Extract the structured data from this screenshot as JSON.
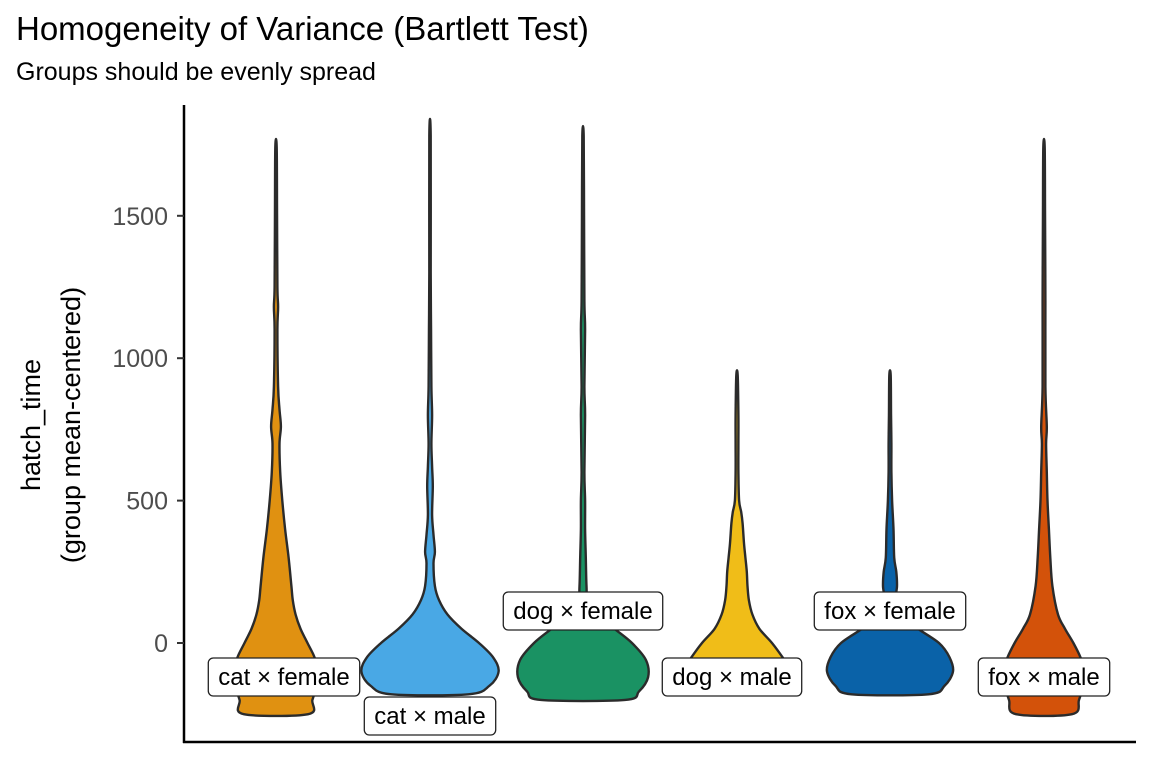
{
  "title": "Homogeneity of Variance (Bartlett Test)",
  "subtitle": "Groups should be evenly spread",
  "chart_data": {
    "type": "violin",
    "title": "Homogeneity of Variance (Bartlett Test)",
    "subtitle": "Groups should be evenly spread",
    "ylabel": [
      "hatch_time",
      "(group mean-centered)"
    ],
    "xlabel": "",
    "ylim": [
      -350,
      1850
    ],
    "y_ticks": [
      0,
      500,
      1000,
      1500
    ],
    "grid": false,
    "legend": "none",
    "groups": [
      {
        "label": "cat × female",
        "color": "#E09111",
        "min": -250,
        "max": 1740,
        "profile": [
          [
            -250,
            0.46
          ],
          [
            -200,
            0.52
          ],
          [
            -150,
            0.58
          ],
          [
            -100,
            0.6
          ],
          [
            -50,
            0.55
          ],
          [
            0,
            0.45
          ],
          [
            50,
            0.35
          ],
          [
            100,
            0.28
          ],
          [
            150,
            0.24
          ],
          [
            200,
            0.22
          ],
          [
            300,
            0.18
          ],
          [
            400,
            0.13
          ],
          [
            500,
            0.09
          ],
          [
            600,
            0.06
          ],
          [
            700,
            0.05
          ],
          [
            760,
            0.07
          ],
          [
            820,
            0.05
          ],
          [
            900,
            0.03
          ],
          [
            1100,
            0.02
          ],
          [
            1180,
            0.03
          ],
          [
            1250,
            0.02
          ],
          [
            1500,
            0.015
          ],
          [
            1740,
            0.01
          ]
        ]
      },
      {
        "label": "cat × male",
        "color": "#49A8E5",
        "min": -180,
        "max": 1780,
        "profile": [
          [
            -180,
            0.55
          ],
          [
            -150,
            0.85
          ],
          [
            -100,
            0.98
          ],
          [
            -50,
            0.9
          ],
          [
            0,
            0.7
          ],
          [
            50,
            0.45
          ],
          [
            100,
            0.25
          ],
          [
            150,
            0.13
          ],
          [
            200,
            0.07
          ],
          [
            280,
            0.05
          ],
          [
            320,
            0.07
          ],
          [
            380,
            0.05
          ],
          [
            450,
            0.03
          ],
          [
            550,
            0.04
          ],
          [
            620,
            0.03
          ],
          [
            700,
            0.02
          ],
          [
            800,
            0.03
          ],
          [
            900,
            0.02
          ],
          [
            1100,
            0.015
          ],
          [
            1300,
            0.01
          ],
          [
            1780,
            0.01
          ]
        ]
      },
      {
        "label": "dog × female",
        "color": "#1A9263",
        "min": -200,
        "max": 1780,
        "profile": [
          [
            -200,
            0.6
          ],
          [
            -170,
            0.8
          ],
          [
            -120,
            0.93
          ],
          [
            -60,
            0.9
          ],
          [
            0,
            0.7
          ],
          [
            50,
            0.45
          ],
          [
            100,
            0.2
          ],
          [
            150,
            0.07
          ],
          [
            200,
            0.05
          ],
          [
            300,
            0.04
          ],
          [
            400,
            0.03
          ],
          [
            500,
            0.03
          ],
          [
            600,
            0.02
          ],
          [
            800,
            0.03
          ],
          [
            900,
            0.02
          ],
          [
            1100,
            0.03
          ],
          [
            1200,
            0.02
          ],
          [
            1500,
            0.015
          ],
          [
            1780,
            0.01
          ]
        ]
      },
      {
        "label": "dog × male",
        "color": "#F0BD18",
        "min": -180,
        "max": 940,
        "profile": [
          [
            -180,
            0.55
          ],
          [
            -150,
            0.72
          ],
          [
            -100,
            0.78
          ],
          [
            -50,
            0.65
          ],
          [
            0,
            0.5
          ],
          [
            50,
            0.32
          ],
          [
            100,
            0.22
          ],
          [
            150,
            0.17
          ],
          [
            200,
            0.15
          ],
          [
            250,
            0.14
          ],
          [
            300,
            0.12
          ],
          [
            350,
            0.1
          ],
          [
            420,
            0.08
          ],
          [
            460,
            0.06
          ],
          [
            500,
            0.03
          ],
          [
            600,
            0.02
          ],
          [
            700,
            0.02
          ],
          [
            800,
            0.02
          ],
          [
            940,
            0.01
          ]
        ]
      },
      {
        "label": "fox × female",
        "color": "#0A62A8",
        "min": -180,
        "max": 940,
        "profile": [
          [
            -180,
            0.55
          ],
          [
            -150,
            0.78
          ],
          [
            -100,
            0.9
          ],
          [
            -50,
            0.85
          ],
          [
            0,
            0.7
          ],
          [
            50,
            0.4
          ],
          [
            100,
            0.15
          ],
          [
            150,
            0.08
          ],
          [
            200,
            0.1
          ],
          [
            250,
            0.09
          ],
          [
            300,
            0.06
          ],
          [
            400,
            0.05
          ],
          [
            500,
            0.03
          ],
          [
            600,
            0.02
          ],
          [
            700,
            0.02
          ],
          [
            800,
            0.015
          ],
          [
            940,
            0.01
          ]
        ]
      },
      {
        "label": "fox × male",
        "color": "#D3520A",
        "min": -250,
        "max": 1740,
        "profile": [
          [
            -250,
            0.4
          ],
          [
            -200,
            0.5
          ],
          [
            -150,
            0.56
          ],
          [
            -100,
            0.58
          ],
          [
            -50,
            0.52
          ],
          [
            0,
            0.42
          ],
          [
            50,
            0.3
          ],
          [
            100,
            0.2
          ],
          [
            200,
            0.12
          ],
          [
            300,
            0.09
          ],
          [
            400,
            0.07
          ],
          [
            500,
            0.05
          ],
          [
            600,
            0.04
          ],
          [
            700,
            0.03
          ],
          [
            760,
            0.04
          ],
          [
            900,
            0.02
          ],
          [
            1200,
            0.02
          ],
          [
            1500,
            0.015
          ],
          [
            1740,
            0.01
          ]
        ]
      }
    ]
  }
}
